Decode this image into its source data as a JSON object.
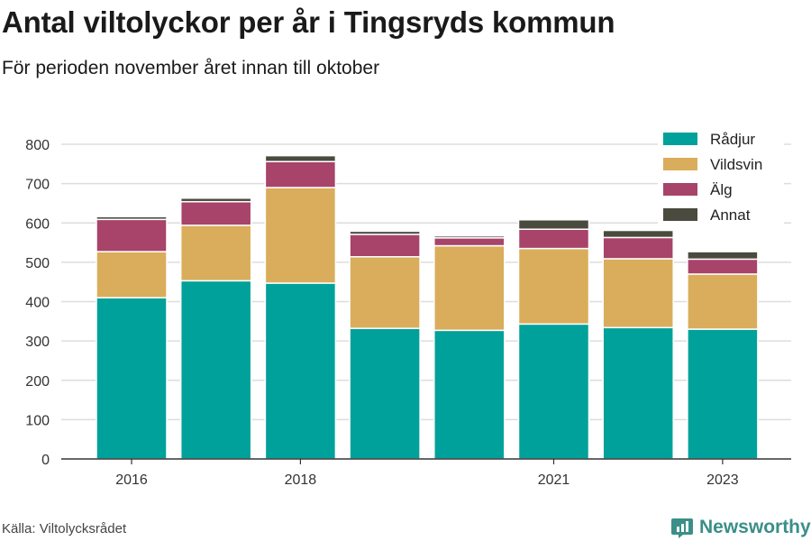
{
  "title": "Antal viltolyckor per år i Tingsryds kommun",
  "subtitle": "För perioden november året innan till oktober",
  "source": "Källa: Viltolycksrådet",
  "brand": "Newsworthy",
  "chart_data": {
    "type": "bar",
    "stacked": true,
    "categories": [
      "2016",
      "2017",
      "2018",
      "2019",
      "2020",
      "2021",
      "2022",
      "2023"
    ],
    "x_tick_labels": [
      "2016",
      "",
      "2018",
      "",
      "",
      "2021",
      "",
      "2023"
    ],
    "y_ticks": [
      0,
      100,
      200,
      300,
      400,
      500,
      600,
      700,
      800
    ],
    "ylim": [
      0,
      800
    ],
    "grid": true,
    "legend_position": "top-right",
    "series": [
      {
        "name": "Rådjur",
        "color": "#00a19a",
        "values": [
          410,
          453,
          447,
          332,
          327,
          343,
          334,
          330
        ]
      },
      {
        "name": "Vildsvin",
        "color": "#d9ad5b",
        "values": [
          117,
          141,
          243,
          182,
          215,
          192,
          175,
          140
        ]
      },
      {
        "name": "Älg",
        "color": "#a8436a",
        "values": [
          82,
          60,
          66,
          57,
          20,
          49,
          54,
          38
        ]
      },
      {
        "name": "Annat",
        "color": "#4a4a3e",
        "values": [
          7,
          9,
          15,
          8,
          5,
          24,
          18,
          19
        ]
      }
    ]
  }
}
